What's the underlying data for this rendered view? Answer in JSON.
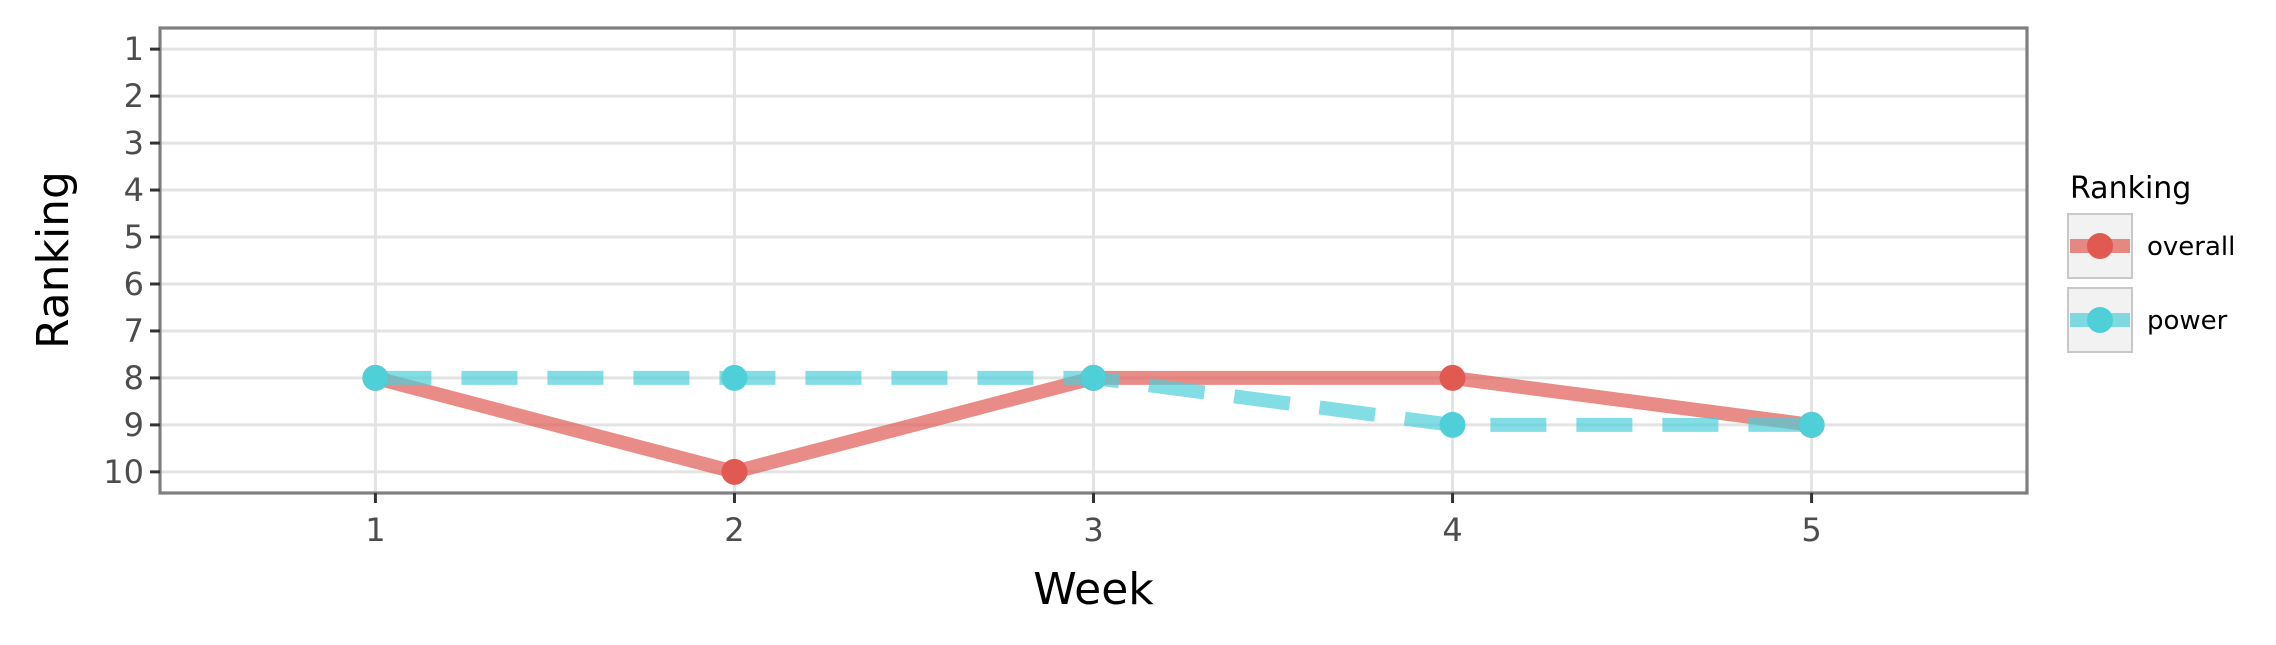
{
  "chart_data": {
    "type": "line",
    "x": [
      1,
      2,
      3,
      4,
      5
    ],
    "xlabel": "Week",
    "ylabel": "Ranking",
    "xlim": [
      0.4,
      5.6
    ],
    "ylim": [
      10.45,
      0.55
    ],
    "y_reversed": true,
    "x_ticks": [
      1,
      2,
      3,
      4,
      5
    ],
    "y_ticks": [
      1,
      2,
      3,
      4,
      5,
      6,
      7,
      8,
      9,
      10
    ],
    "grid": true,
    "legend": {
      "title": "Ranking",
      "placement": "right"
    },
    "series": [
      {
        "name": "overall",
        "values": [
          8,
          10,
          8,
          8,
          9
        ],
        "color": "#e05a52",
        "line_style": "solid"
      },
      {
        "name": "power",
        "values": [
          8,
          8,
          8,
          9,
          9
        ],
        "color": "#4fcfd8",
        "line_style": "dashed"
      }
    ]
  }
}
